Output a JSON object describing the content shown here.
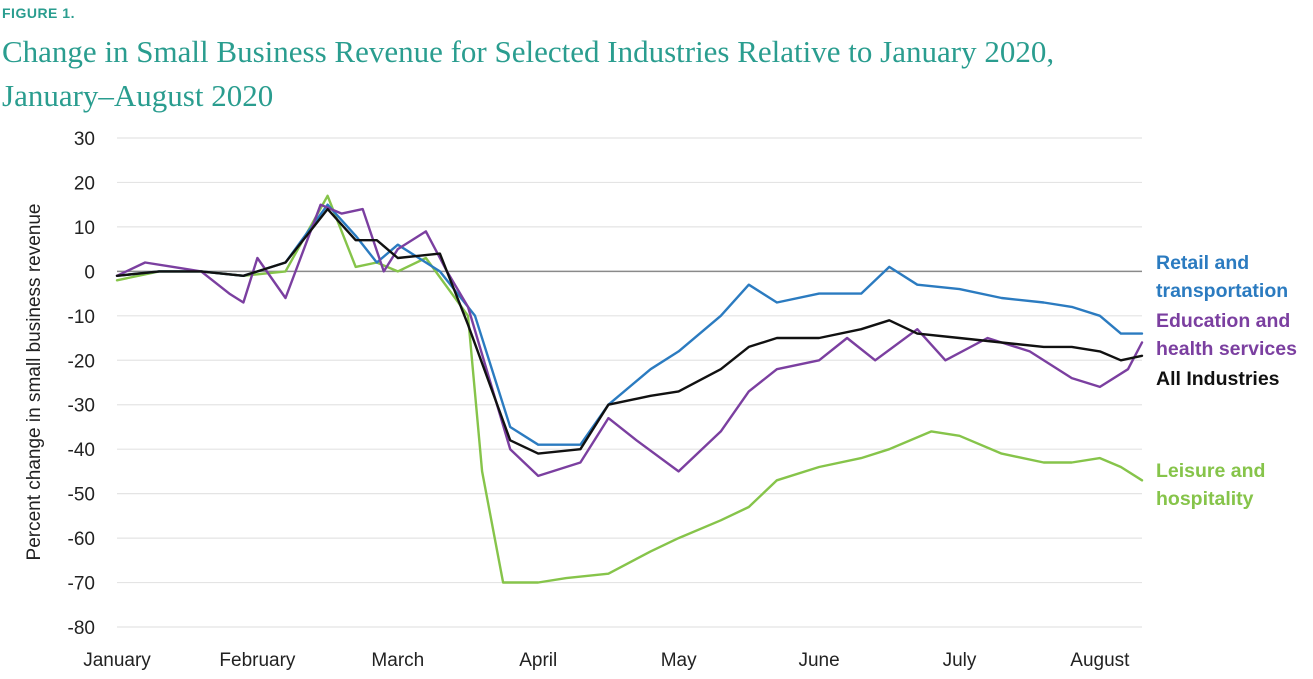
{
  "figure_label": "FIGURE 1.",
  "title_line1": "Change in Small Business Revenue for Selected Industries Relative to January 2020,",
  "title_line2": "January–August 2020",
  "chart_data": {
    "type": "line",
    "title": "Change in Small Business Revenue for Selected Industries Relative to January 2020, January–August 2020",
    "ylabel": "Percent change in small business revenue",
    "xlabel": "",
    "ylim": [
      -80,
      30
    ],
    "xlim": [
      0,
      7.3
    ],
    "y_ticks": [
      "30",
      "20",
      "10",
      "0",
      "-10",
      "-20",
      "-30",
      "-40",
      "-50",
      "-60",
      "-70",
      "-80"
    ],
    "x_tick_labels": [
      "January",
      "February",
      "March",
      "April",
      "May",
      "June",
      "July",
      "August"
    ],
    "x_unit": "months since January (0 = January)",
    "grid": true,
    "legend_placement": "right",
    "series": [
      {
        "name": "Retail and transportation",
        "color": "#2b7bc0",
        "x": [
          0,
          0.3,
          0.6,
          0.9,
          1.2,
          1.5,
          1.7,
          1.85,
          2.0,
          2.3,
          2.55,
          2.8,
          3.0,
          3.3,
          3.5,
          3.8,
          4.0,
          4.3,
          4.5,
          4.7,
          5.0,
          5.3,
          5.5,
          5.7,
          6.0,
          6.3,
          6.6,
          6.8,
          7.0,
          7.15,
          7.3
        ],
        "values": [
          -1,
          0,
          0,
          -1,
          2,
          15,
          8,
          2,
          6,
          0,
          -10,
          -35,
          -39,
          -39,
          -30,
          -22,
          -18,
          -10,
          -3,
          -7,
          -5,
          -5,
          1,
          -3,
          -4,
          -6,
          -7,
          -8,
          -10,
          -14,
          -14
        ]
      },
      {
        "name": "Education and health services",
        "color": "#7b3fa0",
        "x": [
          0,
          0.2,
          0.4,
          0.6,
          0.8,
          0.9,
          1.0,
          1.2,
          1.45,
          1.6,
          1.75,
          1.9,
          2.0,
          2.2,
          2.35,
          2.5,
          2.8,
          3.0,
          3.3,
          3.5,
          3.7,
          4.0,
          4.3,
          4.5,
          4.7,
          5.0,
          5.2,
          5.4,
          5.7,
          5.9,
          6.2,
          6.5,
          6.8,
          7.0,
          7.2,
          7.3
        ],
        "values": [
          -1,
          2,
          1,
          0,
          -5,
          -7,
          3,
          -6,
          15,
          13,
          14,
          0,
          5,
          9,
          0,
          -8,
          -40,
          -46,
          -43,
          -33,
          -38,
          -45,
          -36,
          -27,
          -22,
          -20,
          -15,
          -20,
          -13,
          -20,
          -15,
          -18,
          -24,
          -26,
          -22,
          -16
        ]
      },
      {
        "name": "All Industries",
        "color": "#111111",
        "x": [
          0,
          0.3,
          0.6,
          0.9,
          1.2,
          1.5,
          1.7,
          1.85,
          2.0,
          2.3,
          2.5,
          2.8,
          3.0,
          3.3,
          3.5,
          3.8,
          4.0,
          4.3,
          4.5,
          4.7,
          5.0,
          5.3,
          5.5,
          5.7,
          6.0,
          6.3,
          6.6,
          6.8,
          7.0,
          7.15,
          7.3
        ],
        "values": [
          -1,
          0,
          0,
          -1,
          2,
          14,
          7,
          7,
          3,
          4,
          -12,
          -38,
          -41,
          -40,
          -30,
          -28,
          -27,
          -22,
          -17,
          -15,
          -15,
          -13,
          -11,
          -14,
          -15,
          -16,
          -17,
          -17,
          -18,
          -20,
          -19
        ]
      },
      {
        "name": "Leisure and hospitality",
        "color": "#86c44a",
        "x": [
          0,
          0.3,
          0.6,
          0.9,
          1.2,
          1.5,
          1.7,
          1.85,
          2.0,
          2.2,
          2.5,
          2.6,
          2.75,
          3.0,
          3.2,
          3.5,
          3.8,
          4.0,
          4.3,
          4.5,
          4.7,
          5.0,
          5.3,
          5.5,
          5.8,
          6.0,
          6.3,
          6.6,
          6.8,
          7.0,
          7.15,
          7.3
        ],
        "values": [
          -2,
          0,
          0,
          -1,
          0,
          17,
          1,
          2,
          0,
          3,
          -10,
          -45,
          -70,
          -70,
          -69,
          -68,
          -63,
          -60,
          -56,
          -53,
          -47,
          -44,
          -42,
          -40,
          -36,
          -37,
          -41,
          -43,
          -43,
          -42,
          -44,
          -47
        ]
      }
    ],
    "legend": [
      {
        "lines": [
          "Retail and",
          "transportation"
        ],
        "color": "#2b7bc0"
      },
      {
        "lines": [
          "Education and",
          "health services"
        ],
        "color": "#7b3fa0"
      },
      {
        "lines": [
          "All Industries"
        ],
        "color": "#111111"
      },
      {
        "lines": [
          "Leisure and",
          "hospitality"
        ],
        "color": "#86c44a"
      }
    ]
  }
}
